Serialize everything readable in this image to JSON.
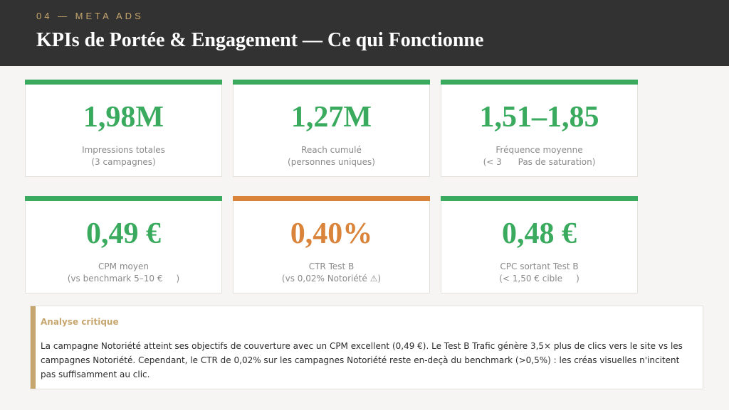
{
  "header": {
    "eyebrow": "04 — META ADS",
    "title": "KPIs de Portée & Engagement — Ce qui Fonctionne"
  },
  "colors": {
    "header_bg": "#323232",
    "accent_gold": "#c6a66e",
    "positive_green": "#3aaa5f",
    "warning_orange": "#d9843a"
  },
  "kpis": [
    {
      "value": "1,98M",
      "label_line1": "Impressions totales",
      "label_line2": "(3 campagnes)",
      "status": "positive"
    },
    {
      "value": "1,27M",
      "label_line1": "Reach cumulé",
      "label_line2": "(personnes uniques)",
      "status": "positive"
    },
    {
      "value": "1,51–1,85",
      "label_line1": "Fréquence moyenne",
      "label_line2": "(< 3      Pas de saturation)",
      "status": "positive"
    },
    {
      "value": "0,49 €",
      "label_line1": "CPM moyen",
      "label_line2": "(vs benchmark 5–10 €     )",
      "status": "positive"
    },
    {
      "value": "0,40%",
      "label_line1": "CTR Test B",
      "label_line2": "(vs 0,02% Notoriété ⚠)",
      "status": "warning"
    },
    {
      "value": "0,48 €",
      "label_line1": "CPC sortant Test B",
      "label_line2": "(< 1,50 € cible     )",
      "status": "positive"
    }
  ],
  "analysis": {
    "title": "Analyse critique",
    "body": "La campagne Notoriété atteint ses objectifs de couverture avec un CPM excellent (0,49 €). Le Test B Trafic génère 3,5× plus de clics vers le site vs les campagnes Notoriété. Cependant, le CTR de 0,02% sur les campagnes Notoriété reste en-deçà du benchmark (>0,5%) : les créas visuelles n'incitent pas suffisamment au clic."
  }
}
